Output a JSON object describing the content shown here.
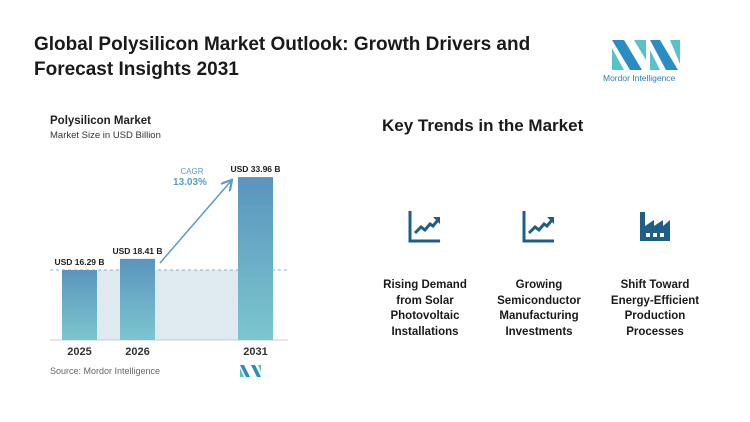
{
  "header": {
    "title": "Global Polysilicon Market Outlook: Growth Drivers and Forecast Insights 2031",
    "logo_text": "Mordor Intelligence"
  },
  "chart_data": {
    "type": "bar",
    "title": "Polysilicon Market",
    "subtitle": "Market Size in USD Billion",
    "categories": [
      "2025",
      "2026",
      "2031"
    ],
    "values": [
      16.29,
      18.41,
      33.96
    ],
    "data_labels": [
      "USD 16.29 B",
      "USD 18.41 B",
      "USD 33.96 B"
    ],
    "annotation": {
      "label": "CAGR",
      "value": "13.03%"
    },
    "source": "Source:  Mordor Intelligence",
    "colors": {
      "bar_top": "#5b94bd",
      "bar_bottom": "#7cc6cf",
      "arrow": "#5b9cc8",
      "band": "#dfe9f0"
    }
  },
  "trends": {
    "title": "Key Trends in the Market",
    "items": [
      {
        "icon": "trend-up-chart-icon",
        "label": "Rising Demand from Solar Photovoltaic Installations"
      },
      {
        "icon": "trend-up-chart-icon",
        "label": "Growing Semiconductor Manufacturing Investments"
      },
      {
        "icon": "factory-icon",
        "label": "Shift Toward Energy-Efficient Production Processes"
      }
    ],
    "icon_color": "#1f5f86"
  }
}
